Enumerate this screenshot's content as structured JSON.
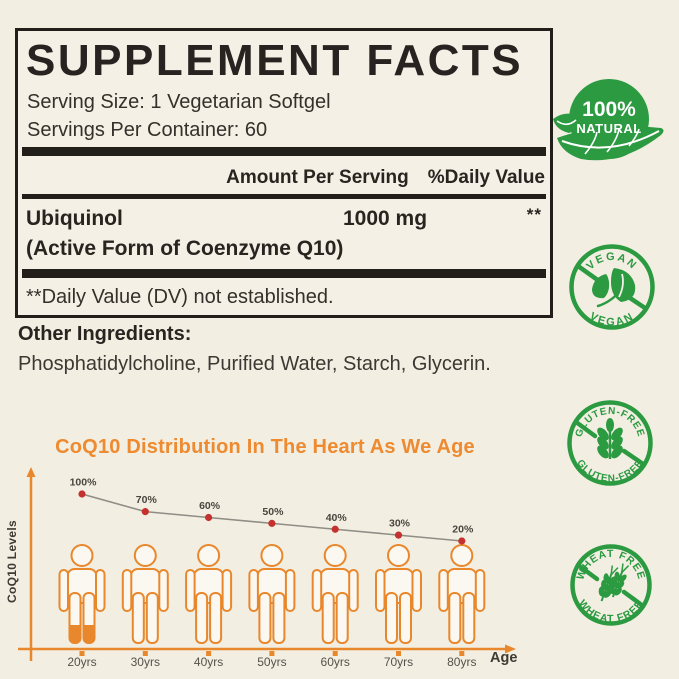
{
  "panel": {
    "title": "SUPPLEMENT FACTS",
    "serving_size": "Serving Size: 1 Vegetarian Softgel",
    "servings_per_container": "Servings Per Container: 60",
    "columns": {
      "amount": "Amount Per Serving",
      "daily_value": "%Daily Value"
    },
    "rows": [
      {
        "name": "Ubiquinol",
        "detail": "(Active Form of Coenzyme Q10)",
        "amount": "1000 mg",
        "daily_value": "**"
      }
    ],
    "footnote": "**Daily Value (DV) not established."
  },
  "other_ingredients": {
    "title": "Other Ingredients:",
    "text": "Phosphatidylcholine, Purified Water, Starch, Glycerin."
  },
  "badges": {
    "color": "#2b9a41",
    "natural": {
      "line1": "100%",
      "line2": "NATURAL"
    },
    "vegan": {
      "top": "VEGAN",
      "bottom": "VEGAN"
    },
    "gluten": {
      "top": "GLUTEN-FREE",
      "bottom": "GLUTEN-FREE"
    },
    "wheat": {
      "top": "WHEAT FREE",
      "bottom": "WHEAT FREE"
    }
  },
  "chart_data": {
    "type": "line",
    "title": "CoQ10 Distribution In The Heart As We Age",
    "xlabel": "Age",
    "ylabel": "CoQ10 Levels",
    "categories": [
      "20yrs",
      "30yrs",
      "40yrs",
      "50yrs",
      "60yrs",
      "70yrs",
      "80yrs"
    ],
    "values": [
      100,
      70,
      60,
      50,
      40,
      30,
      20
    ],
    "point_labels": [
      "100%",
      "70%",
      "60%",
      "50%",
      "40%",
      "30%",
      "20%"
    ],
    "legend": "none",
    "grid": false,
    "colors": {
      "figure": "#e8872b",
      "empty": "#fbf8f1",
      "dot": "#c5312e",
      "line": "#8f8d85",
      "title": "#ee8a2f",
      "tick_label": "#56514a",
      "point_label": "#4a463f",
      "axis_label": "#3e3a34",
      "background": "#f2eee2",
      "ink": "#221e1a"
    }
  }
}
